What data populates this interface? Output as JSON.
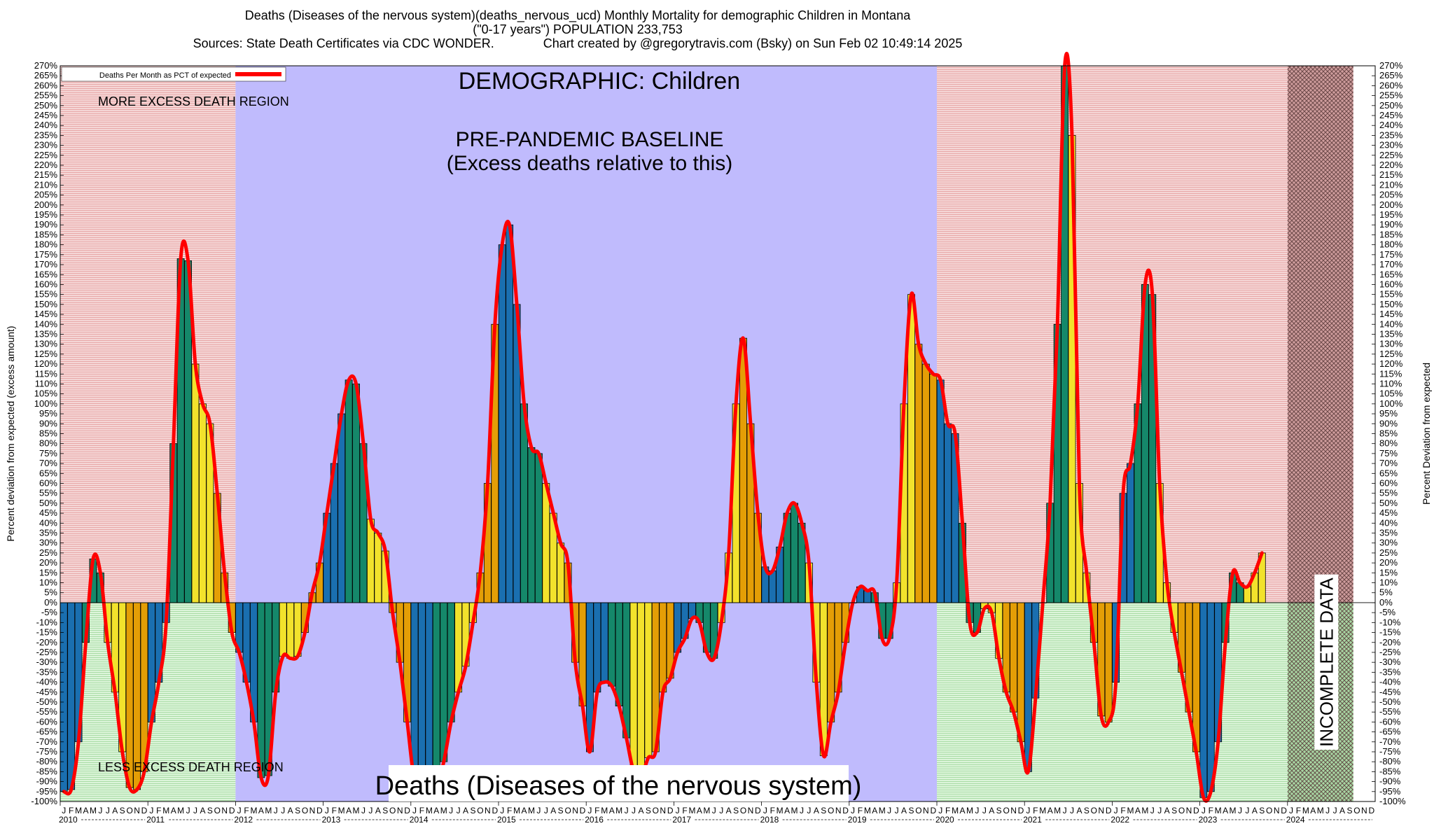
{
  "header": {
    "line1": "Deaths (Diseases of the nervous system)(deaths_nervous_ucd) Monthly Mortality for demographic Children in Montana",
    "line2": "(\"0-17 years\") POPULATION 233,753",
    "line3": "Sources: State Death Certificates via CDC WONDER.              Chart created by @gregorytravis.com (Bsky) on Sun Feb 02 10:49:14 2025"
  },
  "chart_data": {
    "type": "bar",
    "title": "DEMOGRAPHIC: Children",
    "subtitle": "Deaths (Diseases of the nervous system)",
    "ylabel_left": "Percent deviation from expected (excess amount)",
    "ylabel_right": "Percent Deviation from expected",
    "ylim": [
      -100,
      270
    ],
    "ytick_step": 5,
    "ytick_suffix": "%",
    "grid": false,
    "legend": {
      "position": "top-left",
      "entries": [
        {
          "label": "Deaths Per Month as PCT of expected",
          "color": "#ff0000"
        }
      ]
    },
    "annotations": {
      "more_excess": "MORE EXCESS DEATH REGION",
      "less_excess": "LESS EXCESS DEATH REGION",
      "baseline_line1": "PRE-PANDEMIC BASELINE",
      "baseline_line2": "(Excess deaths relative to this)",
      "incomplete": "INCOMPLETE DATA"
    },
    "regions": [
      {
        "name": "pre-baseline",
        "from_month": 0,
        "to_month": 24
      },
      {
        "name": "baseline",
        "from_month": 24,
        "to_month": 120
      },
      {
        "name": "post-baseline",
        "from_month": 120,
        "to_month": 168
      },
      {
        "name": "incomplete",
        "from_month": 168,
        "to_month": 177
      }
    ],
    "years": [
      "2010",
      "2011",
      "2012",
      "2013",
      "2014",
      "2015",
      "2016",
      "2017",
      "2018",
      "2019",
      "2020",
      "2021",
      "2022",
      "2023",
      "2024"
    ],
    "month_letters": [
      "J",
      "F",
      "M",
      "A",
      "M",
      "J",
      "J",
      "A",
      "S",
      "O",
      "N",
      "D"
    ],
    "month_colors": [
      "#1a6fb0",
      "#1a6fb0",
      "#1a6fb0",
      "#15886a",
      "#15886a",
      "#15886a",
      "#f2e22c",
      "#f2e22c",
      "#f2e22c",
      "#e49e06",
      "#e49e06",
      "#e49e06"
    ],
    "colors": {
      "line": "#ff0000",
      "excess_region": "#f2c6c6",
      "less_region": "#c9efc6",
      "baseline_region": "#c0bbfd",
      "incomplete": "#9a7070"
    },
    "values": [
      -95,
      -94,
      -70,
      -20,
      22,
      15,
      -20,
      -45,
      -75,
      -93,
      -94,
      -85,
      -60,
      -40,
      -10,
      80,
      173,
      172,
      120,
      100,
      90,
      55,
      15,
      -15,
      -25,
      -40,
      -60,
      -88,
      -87,
      -45,
      -27,
      -28,
      -27,
      -15,
      5,
      20,
      45,
      70,
      95,
      112,
      110,
      80,
      42,
      35,
      26,
      -5,
      -30,
      -60,
      -90,
      -95,
      -95,
      -92,
      -80,
      -60,
      -45,
      -32,
      -10,
      15,
      60,
      140,
      180,
      190,
      150,
      100,
      78,
      75,
      60,
      45,
      30,
      20,
      -30,
      -52,
      -75,
      -45,
      -40,
      -42,
      -52,
      -68,
      -85,
      -88,
      -78,
      -75,
      -45,
      -38,
      -25,
      -18,
      -8,
      -10,
      -25,
      -28,
      -10,
      25,
      100,
      133,
      90,
      45,
      18,
      16,
      28,
      45,
      50,
      40,
      20,
      -40,
      -77,
      -60,
      -45,
      -20,
      0,
      8,
      6,
      5,
      -18,
      -18,
      10,
      100,
      155,
      130,
      120,
      115,
      112,
      90,
      85,
      40,
      -10,
      -15,
      -3,
      -5,
      -28,
      -45,
      -55,
      -70,
      -85,
      -48,
      0,
      50,
      140,
      270,
      235,
      60,
      15,
      -20,
      -57,
      -60,
      -40,
      55,
      70,
      100,
      160,
      155,
      60,
      10,
      -15,
      -35,
      -55,
      -75,
      -98,
      -95,
      -70,
      -20,
      15,
      10,
      8,
      15,
      25
    ]
  }
}
